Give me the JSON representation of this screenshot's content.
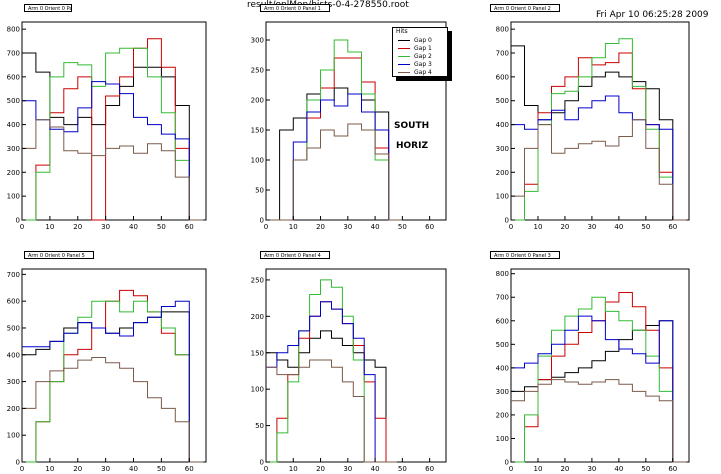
{
  "header": {
    "file_path": "result/onlMon/hists-0-4-278550.root",
    "timestamp": "Fri Apr 10 06:25:28 2009"
  },
  "colors": {
    "gap0": "#000000",
    "gap1": "#cc0000",
    "gap2": "#33bb33",
    "gap3": "#0000cc",
    "gap4": "#7a5a4a"
  },
  "legend": {
    "title": "Hits",
    "entries": [
      "Gap 0",
      "Gap 1",
      "Gap 2",
      "Gap 3",
      "Gap 4"
    ]
  },
  "annotations": [
    "SOUTH",
    "HORIZ"
  ],
  "chart_data": [
    {
      "type": "line",
      "title": "Arm 0 Orient 0 Panel 0",
      "xlim": [
        0,
        66
      ],
      "ylim": [
        0,
        830
      ],
      "xticks": [
        0,
        10,
        20,
        30,
        40,
        50,
        60
      ],
      "yticks": [
        0,
        100,
        200,
        300,
        400,
        500,
        600,
        700,
        800
      ],
      "x": [
        0,
        5,
        10,
        15,
        20,
        25,
        30,
        35,
        40,
        45,
        50,
        55,
        60
      ],
      "series": [
        {
          "name": "Gap 0",
          "values": [
            700,
            620,
            430,
            400,
            430,
            400,
            480,
            560,
            640,
            640,
            600,
            480,
            0
          ]
        },
        {
          "name": "Gap 1",
          "values": [
            0,
            230,
            450,
            550,
            600,
            0,
            520,
            600,
            720,
            760,
            640,
            300,
            0
          ]
        },
        {
          "name": "Gap 2",
          "values": [
            0,
            200,
            600,
            660,
            650,
            560,
            700,
            720,
            720,
            600,
            450,
            250,
            0
          ]
        },
        {
          "name": "Gap 3",
          "values": [
            500,
            420,
            380,
            370,
            470,
            580,
            570,
            530,
            430,
            400,
            360,
            340,
            0
          ]
        },
        {
          "name": "Gap 4",
          "values": [
            300,
            420,
            390,
            290,
            280,
            270,
            300,
            310,
            280,
            320,
            290,
            180,
            0
          ]
        }
      ]
    },
    {
      "type": "line",
      "title": "Arm 0 Orient 0 Panel 1",
      "xlim": [
        0,
        66
      ],
      "ylim": [
        0,
        330
      ],
      "xticks": [
        0,
        10,
        20,
        30,
        40,
        50,
        60
      ],
      "yticks": [
        0,
        50,
        100,
        150,
        200,
        250,
        300
      ],
      "x": [
        0,
        5,
        10,
        15,
        20,
        25,
        30,
        35,
        40,
        45
      ],
      "series": [
        {
          "name": "Gap 0",
          "values": [
            0,
            150,
            170,
            210,
            200,
            220,
            210,
            200,
            180,
            0
          ]
        },
        {
          "name": "Gap 1",
          "values": [
            0,
            0,
            100,
            170,
            220,
            270,
            270,
            230,
            120,
            0
          ]
        },
        {
          "name": "Gap 2",
          "values": [
            0,
            0,
            100,
            200,
            250,
            300,
            280,
            210,
            100,
            0
          ]
        },
        {
          "name": "Gap 3",
          "values": [
            0,
            0,
            130,
            180,
            200,
            190,
            210,
            180,
            150,
            0
          ]
        },
        {
          "name": "Gap 4",
          "values": [
            0,
            0,
            100,
            120,
            150,
            140,
            160,
            150,
            110,
            0
          ]
        }
      ]
    },
    {
      "type": "line",
      "title": "Arm 0 Orient 0 Panel 2",
      "xlim": [
        0,
        66
      ],
      "ylim": [
        0,
        830
      ],
      "xticks": [
        0,
        10,
        20,
        30,
        40,
        50,
        60
      ],
      "yticks": [
        0,
        100,
        200,
        300,
        400,
        500,
        600,
        700,
        800
      ],
      "x": [
        0,
        5,
        10,
        15,
        20,
        25,
        30,
        35,
        40,
        45,
        50,
        55,
        60
      ],
      "series": [
        {
          "name": "Gap 0",
          "values": [
            730,
            480,
            420,
            450,
            500,
            560,
            600,
            620,
            600,
            580,
            550,
            420,
            0
          ]
        },
        {
          "name": "Gap 1",
          "values": [
            0,
            150,
            450,
            560,
            600,
            680,
            650,
            660,
            700,
            550,
            400,
            200,
            0
          ]
        },
        {
          "name": "Gap 2",
          "values": [
            0,
            120,
            400,
            530,
            540,
            600,
            680,
            740,
            760,
            560,
            380,
            180,
            0
          ]
        },
        {
          "name": "Gap 3",
          "values": [
            400,
            380,
            420,
            460,
            420,
            470,
            500,
            520,
            450,
            420,
            400,
            380,
            0
          ]
        },
        {
          "name": "Gap 4",
          "values": [
            100,
            300,
            400,
            280,
            300,
            320,
            330,
            310,
            350,
            420,
            300,
            150,
            0
          ]
        }
      ]
    },
    {
      "type": "line",
      "title": "Arm 0 Orient 0 Panel 5",
      "xlim": [
        0,
        66
      ],
      "ylim": [
        0,
        720
      ],
      "xticks": [
        0,
        10,
        20,
        30,
        40,
        50,
        60
      ],
      "yticks": [
        0,
        100,
        200,
        300,
        400,
        500,
        600,
        700
      ],
      "x": [
        0,
        5,
        10,
        15,
        20,
        25,
        30,
        35,
        40,
        45,
        50,
        55,
        60
      ],
      "series": [
        {
          "name": "Gap 0",
          "values": [
            400,
            420,
            450,
            500,
            520,
            500,
            480,
            500,
            520,
            540,
            560,
            560,
            0
          ]
        },
        {
          "name": "Gap 1",
          "values": [
            0,
            150,
            300,
            400,
            420,
            500,
            600,
            640,
            620,
            560,
            480,
            400,
            0
          ]
        },
        {
          "name": "Gap 2",
          "values": [
            0,
            150,
            300,
            480,
            540,
            600,
            600,
            560,
            600,
            560,
            500,
            400,
            0
          ]
        },
        {
          "name": "Gap 3",
          "values": [
            430,
            430,
            450,
            480,
            520,
            500,
            480,
            470,
            520,
            540,
            580,
            600,
            0
          ]
        },
        {
          "name": "Gap 4",
          "values": [
            200,
            300,
            340,
            350,
            380,
            390,
            370,
            350,
            300,
            240,
            200,
            150,
            0
          ]
        }
      ]
    },
    {
      "type": "line",
      "title": "Arm 0 Orient 0 Panel 4",
      "xlim": [
        0,
        66
      ],
      "ylim": [
        0,
        265
      ],
      "xticks": [
        0,
        10,
        20,
        30,
        40,
        50,
        60
      ],
      "yticks": [
        0,
        50,
        100,
        150,
        200,
        250
      ],
      "x": [
        0,
        4,
        8,
        12,
        16,
        20,
        24,
        28,
        32,
        36,
        40,
        44
      ],
      "series": [
        {
          "name": "Gap 0",
          "values": [
            150,
            140,
            130,
            150,
            170,
            180,
            170,
            160,
            150,
            140,
            130,
            0
          ]
        },
        {
          "name": "Gap 1",
          "values": [
            0,
            60,
            120,
            170,
            200,
            220,
            210,
            190,
            160,
            110,
            60,
            0
          ]
        },
        {
          "name": "Gap 2",
          "values": [
            0,
            40,
            110,
            180,
            230,
            250,
            240,
            200,
            140,
            0,
            0,
            0
          ]
        },
        {
          "name": "Gap 3",
          "values": [
            130,
            150,
            160,
            180,
            200,
            220,
            210,
            190,
            170,
            120,
            0,
            0
          ]
        },
        {
          "name": "Gap 4",
          "values": [
            130,
            120,
            120,
            130,
            140,
            140,
            130,
            110,
            90,
            0,
            0,
            0
          ]
        }
      ]
    },
    {
      "type": "line",
      "title": "Arm 0 Orient 0 Panel 3",
      "xlim": [
        0,
        66
      ],
      "ylim": [
        0,
        820
      ],
      "xticks": [
        0,
        10,
        20,
        30,
        40,
        50,
        60
      ],
      "yticks": [
        0,
        100,
        200,
        300,
        400,
        500,
        600,
        700,
        800
      ],
      "x": [
        0,
        5,
        10,
        15,
        20,
        25,
        30,
        35,
        40,
        45,
        50,
        55,
        60
      ],
      "series": [
        {
          "name": "Gap 0",
          "values": [
            300,
            320,
            350,
            360,
            380,
            400,
            430,
            470,
            520,
            560,
            580,
            600,
            0
          ]
        },
        {
          "name": "Gap 1",
          "values": [
            0,
            150,
            350,
            450,
            500,
            550,
            600,
            680,
            720,
            660,
            560,
            400,
            0
          ]
        },
        {
          "name": "Gap 2",
          "values": [
            0,
            200,
            450,
            560,
            620,
            650,
            700,
            640,
            600,
            560,
            450,
            300,
            0
          ]
        },
        {
          "name": "Gap 3",
          "values": [
            400,
            420,
            460,
            500,
            560,
            620,
            600,
            520,
            480,
            460,
            420,
            600,
            0
          ]
        },
        {
          "name": "Gap 4",
          "values": [
            260,
            300,
            330,
            350,
            340,
            330,
            340,
            350,
            330,
            300,
            280,
            260,
            0
          ]
        }
      ]
    }
  ]
}
